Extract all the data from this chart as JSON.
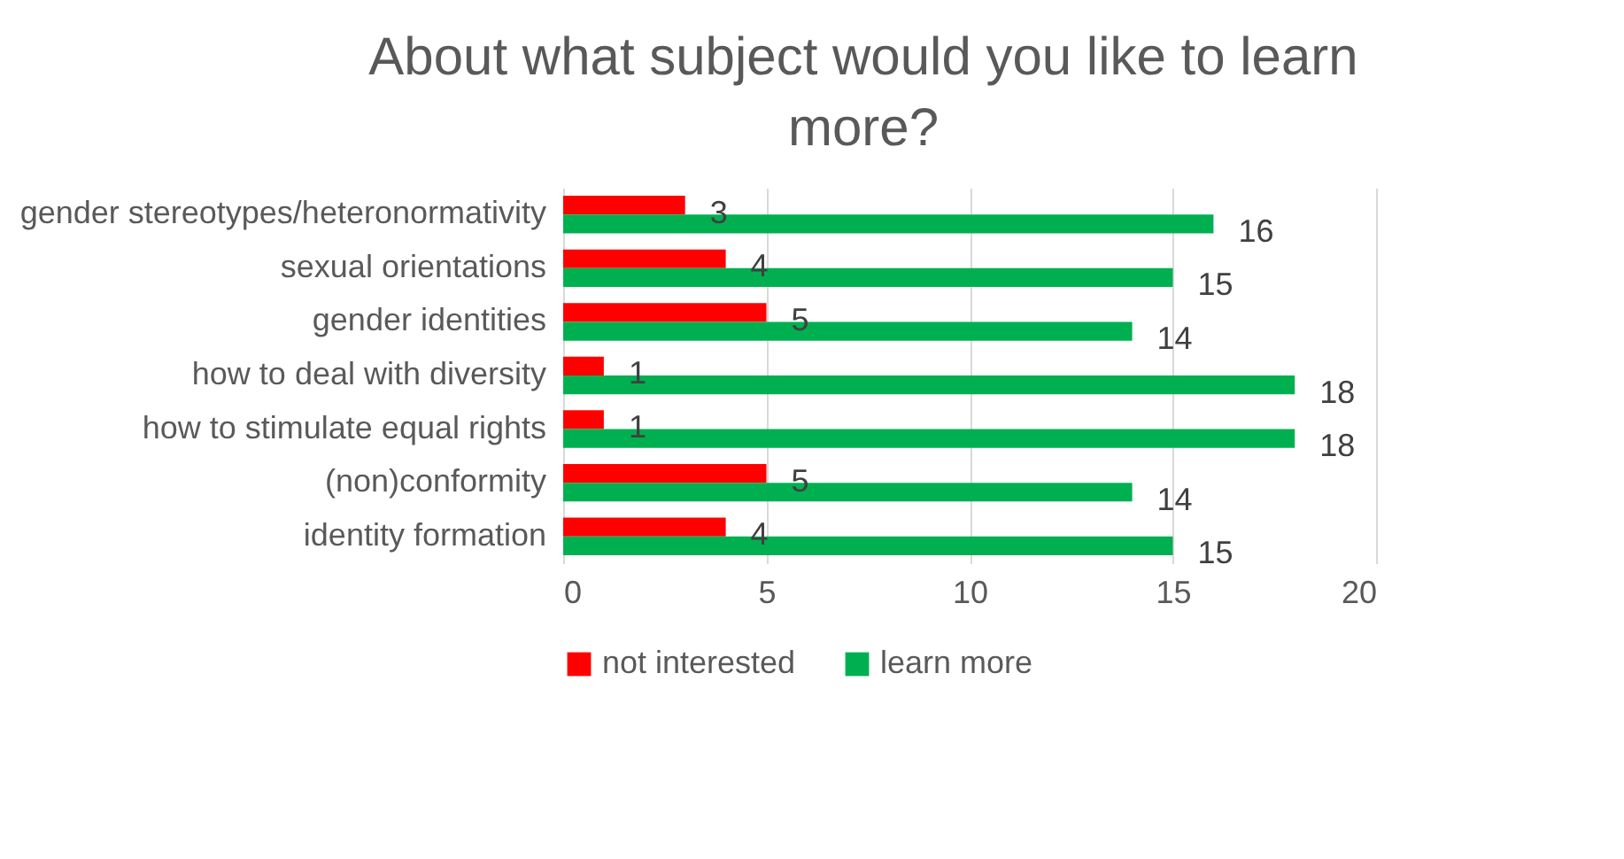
{
  "chart_data": {
    "type": "bar",
    "orientation": "horizontal",
    "title": "About what subject would you like to learn more?",
    "categories": [
      "gender stereotypes/heteronormativity",
      "sexual orientations",
      "gender identities",
      "how to deal with diversity",
      "how to stimulate equal rights",
      "(non)conformity",
      "identity formation"
    ],
    "series": [
      {
        "name": "not interested",
        "color": "#ff0000",
        "values": [
          3,
          4,
          5,
          1,
          1,
          5,
          4
        ]
      },
      {
        "name": "learn more",
        "color": "#00b050",
        "values": [
          16,
          15,
          14,
          18,
          18,
          14,
          15
        ]
      }
    ],
    "xlim": [
      0,
      20
    ],
    "xticks": [
      0,
      5,
      10,
      15,
      20
    ],
    "grid": "x",
    "legend": "bottom",
    "data_labels": true
  }
}
